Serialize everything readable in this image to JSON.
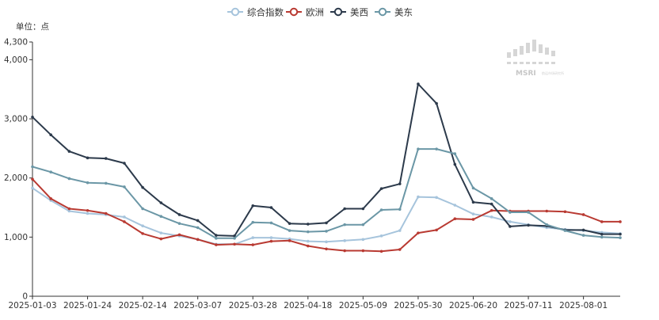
{
  "chart_data": {
    "type": "line",
    "unit_label": "单位：点",
    "ylim": [
      0,
      4300
    ],
    "y_ticks": [
      0,
      1000,
      2000,
      3000,
      4000,
      4300
    ],
    "y_tick_labels": [
      "0",
      "1,000",
      "2,000",
      "3,000",
      "4,000",
      "4,300"
    ],
    "x_tick_labels": [
      "2025-01-03",
      "2025-01-24",
      "2025-02-14",
      "2025-03-07",
      "2025-03-28",
      "2025-04-18",
      "2025-05-09",
      "2025-05-30",
      "2025-06-20",
      "2025-07-11",
      "2025-08-01"
    ],
    "x_count": 33,
    "legend_position": "top-center",
    "series": [
      {
        "name": "综合指数",
        "color": "#a6c4dc",
        "values": [
          1830,
          1620,
          1440,
          1400,
          1380,
          1340,
          1190,
          1070,
          1020,
          960,
          880,
          880,
          990,
          990,
          970,
          930,
          920,
          940,
          960,
          1020,
          1110,
          1680,
          1670,
          1540,
          1390,
          1340,
          1260,
          1210,
          1160,
          1130,
          1110,
          1080,
          1060
        ]
      },
      {
        "name": "欧洲",
        "color": "#b93a32",
        "values": [
          1980,
          1650,
          1480,
          1450,
          1400,
          1260,
          1060,
          970,
          1040,
          960,
          870,
          880,
          870,
          930,
          940,
          850,
          800,
          770,
          770,
          760,
          790,
          1070,
          1120,
          1310,
          1300,
          1450,
          1440,
          1440,
          1440,
          1430,
          1380,
          1260,
          1260
        ]
      },
      {
        "name": "美西",
        "color": "#2c3a4b",
        "values": [
          3030,
          2730,
          2450,
          2340,
          2330,
          2250,
          1840,
          1580,
          1380,
          1280,
          1030,
          1020,
          1530,
          1500,
          1230,
          1220,
          1240,
          1480,
          1480,
          1820,
          1900,
          3590,
          3260,
          2230,
          1590,
          1560,
          1180,
          1200,
          1190,
          1120,
          1120,
          1050,
          1050
        ]
      },
      {
        "name": "美东",
        "color": "#6b97a6",
        "values": [
          2190,
          2100,
          1990,
          1920,
          1910,
          1850,
          1480,
          1350,
          1230,
          1160,
          980,
          980,
          1250,
          1240,
          1110,
          1090,
          1100,
          1210,
          1210,
          1460,
          1470,
          2490,
          2490,
          2410,
          1830,
          1650,
          1420,
          1420,
          1210,
          1110,
          1030,
          1000,
          990
        ]
      }
    ]
  },
  "watermark": {
    "text": "MSRI",
    "subtext": "航运市场研究所"
  }
}
